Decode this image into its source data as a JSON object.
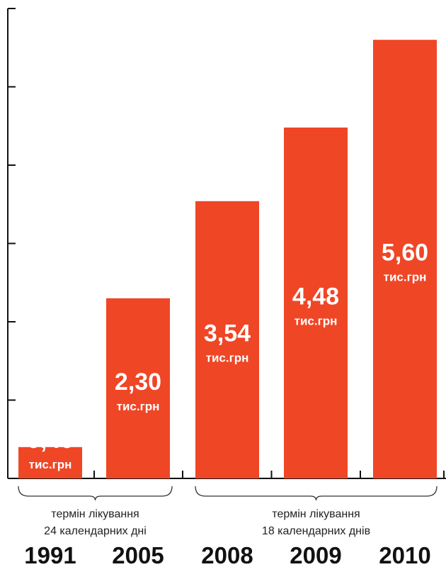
{
  "chart_data": {
    "type": "bar",
    "categories": [
      "1991",
      "2005",
      "2008",
      "2009",
      "2010"
    ],
    "values": [
      0.4,
      2.3,
      3.54,
      4.48,
      5.6
    ],
    "value_labels": [
      "0,40",
      "2,30",
      "3,54",
      "4,48",
      "5,60"
    ],
    "unit_label": "тис.грн",
    "ylim": [
      0,
      6
    ],
    "y_ticks": [
      0,
      1,
      2,
      3,
      4,
      5,
      6
    ],
    "y_tick_labels_shown": false,
    "bar_color": "#ef4626",
    "groups": [
      {
        "line1": "термін лікування",
        "line2": "24 календарних дні",
        "categories": [
          "1991",
          "2005"
        ]
      },
      {
        "line1": "термін лікування",
        "line2": "18 календарних днів",
        "categories": [
          "2008",
          "2009",
          "2010"
        ]
      }
    ]
  }
}
